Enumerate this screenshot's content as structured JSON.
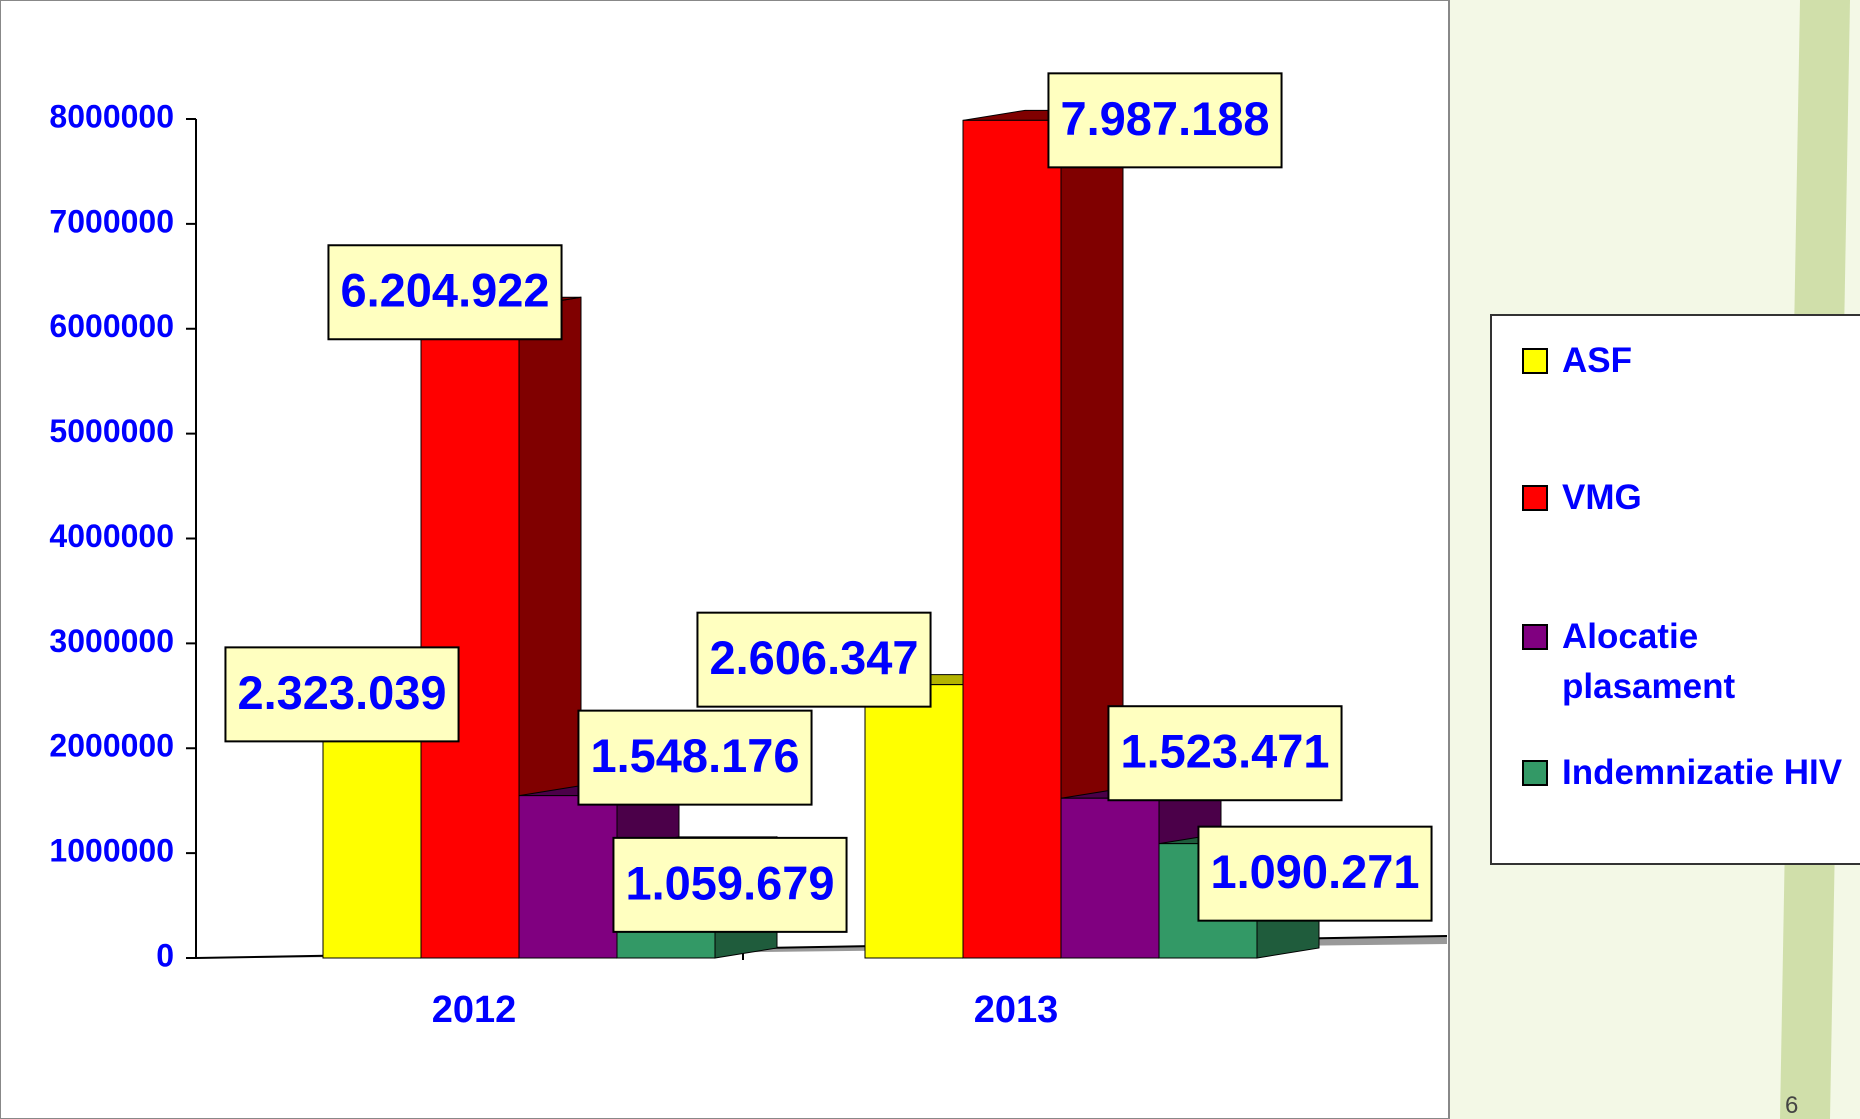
{
  "chart_data": {
    "type": "bar3d",
    "categories": [
      "2012",
      "2013"
    ],
    "series": [
      {
        "name": "ASF",
        "color": "#ffff00",
        "values": [
          2323039,
          2606347
        ],
        "value_labels": [
          "2.323.039",
          "2.606.347"
        ]
      },
      {
        "name": "VMG",
        "color": "#ff0000",
        "values": [
          6204922,
          7987188
        ],
        "value_labels": [
          "6.204.922",
          "7.987.188"
        ]
      },
      {
        "name": "Alocatie plasament",
        "color": "#800080",
        "values": [
          1548176,
          1523471
        ],
        "value_labels": [
          "1.548.176",
          "1.523.471"
        ]
      },
      {
        "name": "Indemnizatie HIV",
        "color": "#339966",
        "values": [
          1059679,
          1090271
        ],
        "value_labels": [
          "1.059.679",
          "1.090.271"
        ]
      }
    ],
    "ylim": [
      0,
      8000000
    ],
    "yticks": [
      0,
      1000000,
      2000000,
      3000000,
      4000000,
      5000000,
      6000000,
      7000000,
      8000000
    ],
    "legend": "right"
  },
  "slide_number": "6"
}
